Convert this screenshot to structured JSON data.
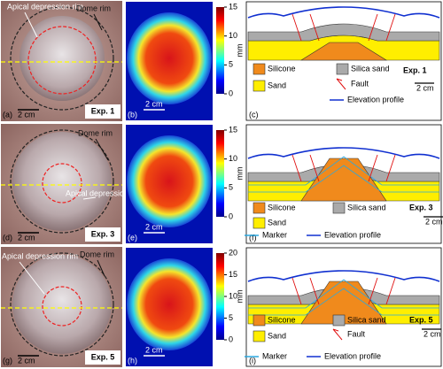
{
  "rows": [
    {
      "photo": {
        "label": "(a)",
        "scale": "2 cm",
        "experiment": "Exp. 1",
        "annotations": [
          "Apical depression rim",
          "Dome rim"
        ]
      },
      "map": {
        "label": "(b)",
        "scale": "2 cm",
        "unit": "mm",
        "ticks": [
          0,
          5,
          10,
          15
        ]
      },
      "section": {
        "label": "(c)",
        "experiment": "Exp. 1",
        "scale": "2 cm",
        "legend": [
          "Silicone",
          "Silica sand",
          "Sand",
          "Fault",
          "Elevation profile"
        ]
      }
    },
    {
      "photo": {
        "label": "(d)",
        "scale": "2 cm",
        "experiment": "Exp. 3",
        "annotations": [
          "Dome rim",
          "Apical depression rim"
        ]
      },
      "map": {
        "label": "(e)",
        "scale": "2 cm",
        "unit": "mm",
        "ticks": [
          0,
          5,
          10,
          15
        ]
      },
      "section": {
        "label": "(f)",
        "experiment": "Exp. 3",
        "scale": "2 cm",
        "legend": [
          "Silicone",
          "Silica sand",
          "Sand",
          "Marker",
          "Elevation profile"
        ]
      }
    },
    {
      "photo": {
        "label": "(g)",
        "scale": "2 cm",
        "experiment": "Exp. 5",
        "annotations": [
          "Apical depression rim",
          "Dome rim"
        ]
      },
      "map": {
        "label": "(h)",
        "scale": "2 cm",
        "unit": "mm",
        "ticks": [
          0,
          5,
          10,
          15,
          20
        ]
      },
      "section": {
        "label": "(i)",
        "experiment": "Exp. 5",
        "scale": "2 cm",
        "legend": [
          "Silicone",
          "Silica sand",
          "Sand",
          "Fault",
          "Marker",
          "Elevation profile"
        ]
      }
    }
  ]
}
